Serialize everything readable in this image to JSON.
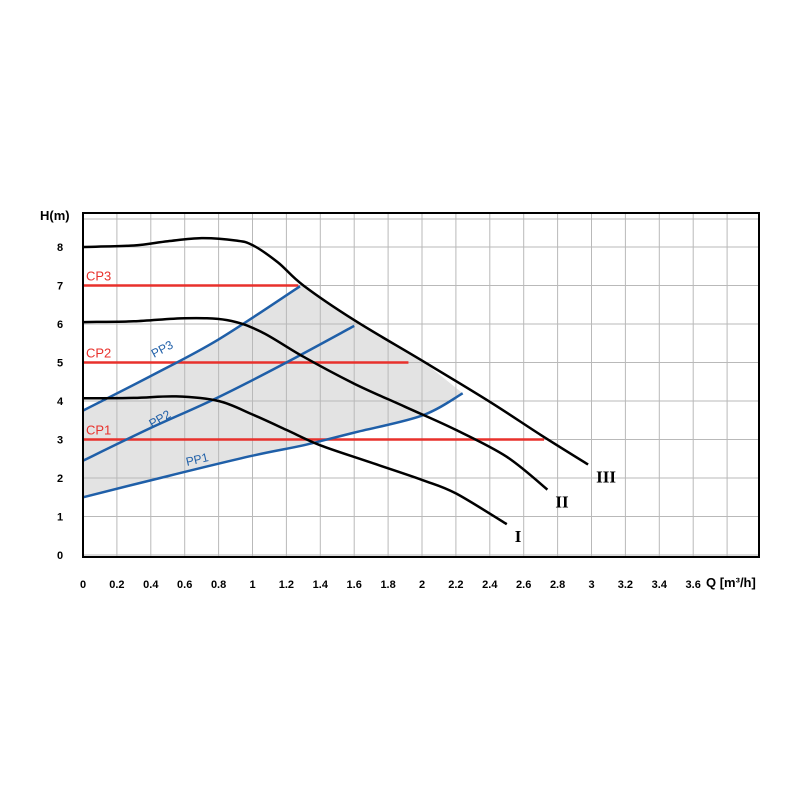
{
  "chart_data": {
    "type": "line",
    "title": "",
    "xlabel": "Q [m³/h]",
    "ylabel": "H(m)",
    "xlim": [
      0,
      4.0
    ],
    "ylim": [
      0,
      9
    ],
    "grid": true,
    "x_ticks": [
      "0",
      "0.2",
      "0.4",
      "0.6",
      "0.8",
      "1",
      "1.2",
      "1.4",
      "1.6",
      "1.8",
      "2",
      "2.2",
      "2.4",
      "2.6",
      "2.8",
      "3",
      "3.2",
      "3.4",
      "3.6"
    ],
    "y_ticks": [
      "0",
      "1",
      "2",
      "3",
      "4",
      "5",
      "6",
      "7",
      "8"
    ],
    "colors": {
      "speed": "#000000",
      "cp": "#e8312c",
      "pp": "#1f5fa8",
      "area": "#e3e3e3",
      "grid": "#b9b9b9"
    },
    "speed_curves": [
      {
        "name": "I",
        "points": [
          [
            0,
            4.07
          ],
          [
            0.3,
            4.08
          ],
          [
            0.55,
            4.12
          ],
          [
            0.8,
            4.0
          ],
          [
            1.0,
            3.65
          ],
          [
            1.2,
            3.25
          ],
          [
            1.4,
            2.85
          ],
          [
            1.7,
            2.4
          ],
          [
            2.0,
            1.95
          ],
          [
            2.2,
            1.6
          ],
          [
            2.5,
            0.8
          ]
        ]
      },
      {
        "name": "II",
        "points": [
          [
            0,
            6.05
          ],
          [
            0.3,
            6.07
          ],
          [
            0.6,
            6.15
          ],
          [
            0.85,
            6.1
          ],
          [
            1.05,
            5.8
          ],
          [
            1.3,
            5.15
          ],
          [
            1.6,
            4.45
          ],
          [
            1.9,
            3.85
          ],
          [
            2.2,
            3.25
          ],
          [
            2.5,
            2.55
          ],
          [
            2.74,
            1.7
          ]
        ]
      },
      {
        "name": "III",
        "points": [
          [
            0,
            8.0
          ],
          [
            0.3,
            8.04
          ],
          [
            0.5,
            8.15
          ],
          [
            0.7,
            8.23
          ],
          [
            0.9,
            8.17
          ],
          [
            1.0,
            8.05
          ],
          [
            1.15,
            7.6
          ],
          [
            1.3,
            7.0
          ],
          [
            1.6,
            6.1
          ],
          [
            2.0,
            5.05
          ],
          [
            2.4,
            3.98
          ],
          [
            2.7,
            3.12
          ],
          [
            2.98,
            2.35
          ]
        ]
      }
    ],
    "pp_curves": [
      {
        "name": "PP1",
        "points": [
          [
            0,
            1.5
          ],
          [
            0.5,
            2.05
          ],
          [
            1.0,
            2.58
          ],
          [
            1.3,
            2.85
          ],
          [
            1.6,
            3.18
          ],
          [
            2.0,
            3.62
          ],
          [
            2.24,
            4.2
          ]
        ]
      },
      {
        "name": "PP2",
        "points": [
          [
            0,
            2.45
          ],
          [
            0.4,
            3.3
          ],
          [
            0.8,
            4.1
          ],
          [
            1.2,
            5.0
          ],
          [
            1.6,
            5.95
          ]
        ]
      },
      {
        "name": "PP3",
        "points": [
          [
            0,
            3.75
          ],
          [
            0.4,
            4.65
          ],
          [
            0.8,
            5.6
          ],
          [
            1.28,
            6.98
          ]
        ]
      }
    ],
    "cp_lines": [
      {
        "name": "CP1",
        "h": 3.0,
        "q_end": 2.72
      },
      {
        "name": "CP2",
        "h": 5.0,
        "q_end": 1.92
      },
      {
        "name": "CP3",
        "h": 7.0,
        "q_end": 1.27
      }
    ]
  }
}
